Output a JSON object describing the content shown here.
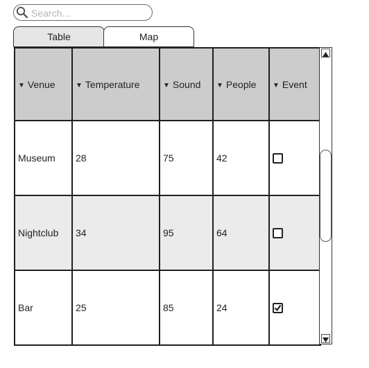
{
  "search": {
    "placeholder": "Search...",
    "value": "",
    "icon": "search-icon"
  },
  "tabs": [
    {
      "label": "Table",
      "selected": true
    },
    {
      "label": "Map",
      "selected": false
    }
  ],
  "table": {
    "sort_icon": "sort-down-arrow-icon",
    "columns": [
      "Venue",
      "Temperature",
      "Sound",
      "People",
      "Event"
    ],
    "rows": [
      {
        "venue": "Museum",
        "temperature": "28",
        "sound": "75",
        "people": "42",
        "event": false
      },
      {
        "venue": "Nightclub",
        "temperature": "34",
        "sound": "95",
        "people": "64",
        "event": false
      },
      {
        "venue": "Bar",
        "temperature": "25",
        "sound": "85",
        "people": "24",
        "event": true
      }
    ]
  },
  "scrollbar": {
    "up_icon": "scroll-up-arrow-icon",
    "down_icon": "scroll-down-arrow-icon"
  }
}
